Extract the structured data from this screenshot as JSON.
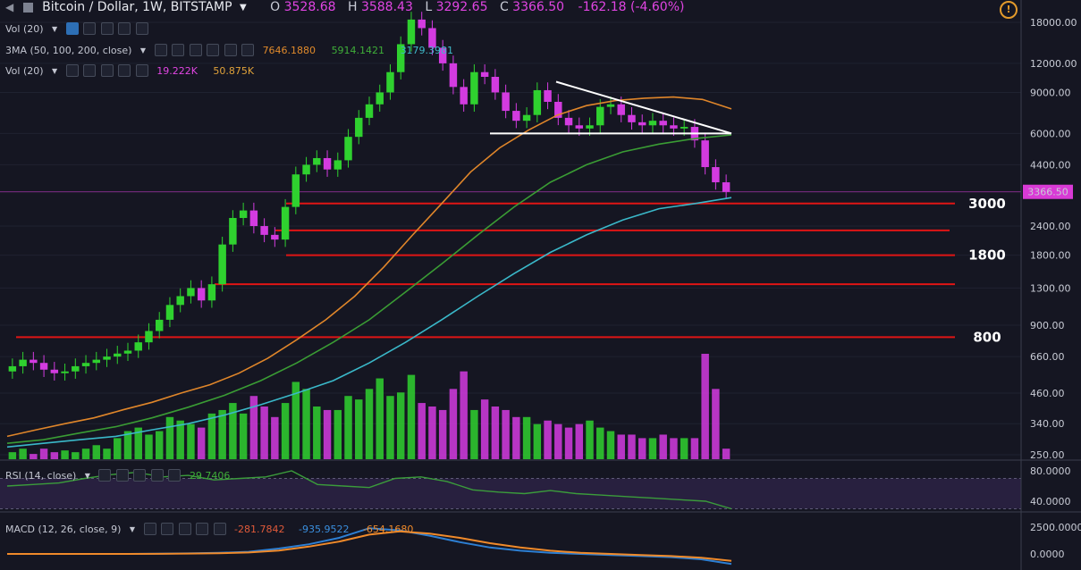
{
  "header": {
    "symbol": "Bitcoin / Dollar, 1W, BITSTAMP",
    "open_label": "O",
    "open": "3528.68",
    "high_label": "H",
    "high": "3588.43",
    "low_label": "L",
    "low": "3292.65",
    "close_label": "C",
    "close": "3366.50",
    "change": "-162.18 (-4.60%)"
  },
  "indicators": {
    "vol1": "Vol (20)",
    "ma_name": "3MA (50, 100, 200, close)",
    "ma_values": [
      "7646.1880",
      "5914.1421",
      "3179.3981"
    ],
    "vol2": "Vol (20)",
    "vol_values": [
      "19.222K",
      "50.875K"
    ],
    "rsi_name": "RSI (14, close)",
    "rsi_value": "29.7406",
    "macd_name": "MACD (12, 26, close, 9)",
    "macd_values": [
      "-281.7842",
      "-935.9522",
      "-654.1680"
    ]
  },
  "colors": {
    "up": "#2fd12f",
    "down": "#d33be0",
    "ma50": "#e0862a",
    "ma100": "#3a9c34",
    "ma200": "#3ab8c9",
    "level": "#e01515",
    "trend": "#ffffff",
    "rsi": "#3b9c3b",
    "macd": "#2d7fd3",
    "signal": "#f08a2a",
    "last": "#d93ad6"
  },
  "chart_data": [
    {
      "type": "candlestick",
      "title": "Bitcoin / Dollar, 1W, BITSTAMP",
      "y_scale": "log",
      "y_ticks": [
        "18000.00",
        "12000.00",
        "9000.00",
        "6000.00",
        "4400.00",
        "3366.50",
        "2400.00",
        "1800.00",
        "1300.00",
        "900.00",
        "660.00",
        "460.00",
        "340.00",
        "250.00"
      ],
      "last_price": "3366.50",
      "horizontal_levels": [
        3000,
        2300,
        1800,
        1350,
        800
      ],
      "level_labels": [
        "3000",
        "1800",
        "800"
      ],
      "trendline": {
        "from": 10000,
        "to": 6000
      },
      "support": 6000,
      "series": [
        {
          "name": "Price",
          "path": [
            600,
            640,
            620,
            580,
            560,
            570,
            600,
            620,
            640,
            660,
            680,
            700,
            760,
            850,
            950,
            1100,
            1200,
            1300,
            1150,
            1350,
            2000,
            2600,
            2800,
            2400,
            2200,
            2100,
            2900,
            4000,
            4400,
            4700,
            4200,
            4600,
            5800,
            7000,
            8000,
            9000,
            11000,
            14500,
            18500,
            17000,
            14000,
            12000,
            9500,
            8000,
            11000,
            10500,
            9000,
            7500,
            6800,
            7200,
            9200,
            8200,
            7000,
            6500,
            6300,
            6500,
            7800,
            8000,
            7200,
            6700,
            6500,
            6800,
            6500,
            6300,
            6400,
            5600,
            4300,
            3700,
            3366
          ]
        },
        {
          "name": "MA50",
          "path": [
            300,
            320,
            340,
            360,
            390,
            420,
            460,
            500,
            560,
            650,
            780,
            950,
            1200,
            1600,
            2200,
            3000,
            4100,
            5200,
            6200,
            7200,
            7900,
            8300,
            8500,
            8600,
            8400,
            7646
          ]
        },
        {
          "name": "MA100",
          "path": [
            280,
            290,
            310,
            330,
            360,
            400,
            450,
            520,
            620,
            760,
            950,
            1250,
            1650,
            2200,
            2900,
            3700,
            4400,
            5000,
            5400,
            5700,
            5914
          ]
        },
        {
          "name": "MA200",
          "path": [
            270,
            280,
            290,
            300,
            320,
            340,
            370,
            410,
            460,
            520,
            620,
            760,
            950,
            1200,
            1500,
            1850,
            2200,
            2550,
            2850,
            3000,
            3179
          ]
        }
      ]
    },
    {
      "type": "bar",
      "name": "Volume",
      "values": [
        2,
        3,
        1.5,
        3,
        2,
        2.5,
        2,
        3,
        4,
        3,
        6,
        8,
        9,
        7,
        8,
        12,
        11,
        10,
        9,
        13,
        14,
        16,
        13,
        18,
        15,
        12,
        16,
        22,
        20,
        15,
        14,
        14,
        18,
        17,
        20,
        23,
        18,
        19,
        24,
        16,
        15,
        14,
        20,
        25,
        14,
        17,
        15,
        14,
        12,
        12,
        10,
        11,
        10,
        9,
        10,
        11,
        9,
        8,
        7,
        7,
        6,
        6,
        7,
        6,
        6,
        6,
        30,
        20,
        3
      ]
    },
    {
      "type": "line",
      "name": "RSI (14, close)",
      "y_ticks": [
        "80.0000",
        "40.0000"
      ],
      "values": [
        60,
        62,
        64,
        70,
        75,
        78,
        72,
        74,
        68,
        70,
        72,
        80,
        62,
        60,
        58,
        70,
        72,
        66,
        55,
        52,
        50,
        54,
        50,
        48,
        46,
        44,
        42,
        40,
        30
      ]
    },
    {
      "type": "line",
      "name": "MACD (12, 26, close, 9)",
      "y_ticks": [
        "2500.0000",
        "0.0000"
      ],
      "macd": [
        0,
        0,
        0,
        0,
        0,
        20,
        50,
        100,
        200,
        500,
        900,
        1500,
        2400,
        2200,
        1700,
        1100,
        600,
        300,
        100,
        0,
        -100,
        -200,
        -300,
        -500,
        -936
      ],
      "signal": [
        0,
        0,
        0,
        0,
        0,
        10,
        30,
        60,
        130,
        320,
        680,
        1150,
        1800,
        2100,
        1900,
        1500,
        1000,
        600,
        300,
        100,
        0,
        -100,
        -200,
        -350,
        -654
      ]
    }
  ]
}
